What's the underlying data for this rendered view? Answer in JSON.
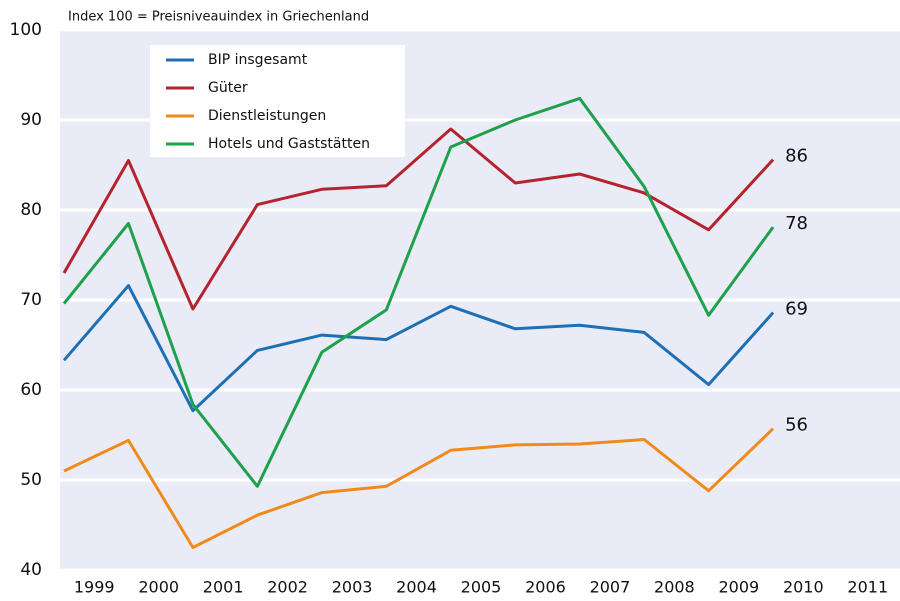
{
  "chart_data": {
    "type": "line",
    "note": "Index 100 = Preisniveauindex in Griechenland",
    "categories": [
      "1999",
      "2000",
      "2001",
      "2002",
      "2003",
      "2004",
      "2005",
      "2006",
      "2007",
      "2008",
      "2009",
      "2010",
      "2011"
    ],
    "series": [
      {
        "name": "BIP insgesamt",
        "color": "#1f6fb4",
        "values": [
          63.3,
          71.6,
          57.7,
          64.4,
          66.1,
          65.6,
          69.3,
          66.8,
          67.2,
          66.4,
          60.6,
          68.6,
          null
        ],
        "value_labels": [
          null,
          null,
          null,
          null,
          null,
          null,
          null,
          null,
          null,
          null,
          null,
          "69",
          null
        ]
      },
      {
        "name": "Güter",
        "color": "#b5242e",
        "values": [
          73,
          85.5,
          69,
          80.6,
          82.3,
          82.7,
          89,
          83,
          84,
          81.9,
          77.8,
          85.6,
          null
        ],
        "value_labels": [
          null,
          null,
          null,
          null,
          null,
          null,
          null,
          null,
          null,
          null,
          null,
          "86",
          null
        ]
      },
      {
        "name": "Dienstleistungen",
        "color": "#f08a1c",
        "values": [
          51,
          54.4,
          42.5,
          46.1,
          48.6,
          49.3,
          53.3,
          53.9,
          54,
          54.5,
          48.8,
          55.7,
          null
        ],
        "value_labels": [
          null,
          null,
          null,
          null,
          null,
          null,
          null,
          null,
          null,
          null,
          null,
          "56",
          null
        ]
      },
      {
        "name": "Hotels und Gaststätten",
        "color": "#1fa04a",
        "values": [
          69.6,
          78.5,
          58.4,
          49.3,
          64.2,
          68.9,
          87,
          90,
          92.4,
          82.6,
          68.3,
          78.1,
          null
        ],
        "value_labels": [
          null,
          null,
          null,
          null,
          null,
          null,
          null,
          null,
          null,
          null,
          null,
          "78",
          null
        ]
      }
    ],
    "ylim": [
      40,
      100
    ],
    "yticks": [
      40,
      50,
      60,
      70,
      80,
      90,
      100
    ],
    "grid": true
  }
}
